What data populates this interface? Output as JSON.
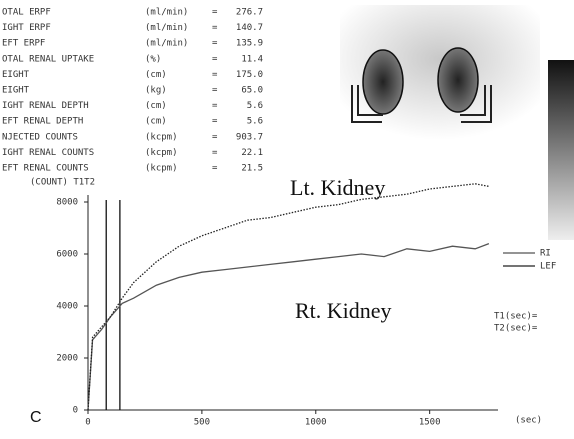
{
  "parameters": [
    {
      "label": "OTAL ERPF",
      "unit": "(ml/min)",
      "value": "276.7"
    },
    {
      "label": "IGHT ERPF",
      "unit": "(ml/min)",
      "value": "140.7"
    },
    {
      "label": "EFT ERPF",
      "unit": "(ml/min)",
      "value": "135.9"
    },
    {
      "label": "OTAL RENAL UPTAKE",
      "unit": "(%)",
      "value": "11.4"
    },
    {
      "label": "EIGHT",
      "unit": "(cm)",
      "value": "175.0"
    },
    {
      "label": "EIGHT",
      "unit": "(kg)",
      "value": "65.0"
    },
    {
      "label": "IGHT RENAL DEPTH",
      "unit": "(cm)",
      "value": "5.6"
    },
    {
      "label": "EFT RENAL DEPTH",
      "unit": "(cm)",
      "value": "5.6"
    },
    {
      "label": "NJECTED COUNTS",
      "unit": "(kcpm)",
      "value": "903.7"
    },
    {
      "label": "IGHT RENAL COUNTS",
      "unit": "(kcpm)",
      "value": "22.1"
    },
    {
      "label": "EFT RENAL COUNTS",
      "unit": "(kcpm)",
      "value": "21.5"
    }
  ],
  "equals": "=",
  "panel_label": "C",
  "side_labels": [
    "T1(sec)=",
    "T2(sec)="
  ],
  "chart_data": {
    "type": "line",
    "y_label": "(COUNT) T1T2",
    "x_label": "(sec)",
    "annotations": [
      "Lt. Kidney",
      "Rt. Kidney"
    ],
    "x": [
      0,
      20,
      60,
      100,
      150,
      200,
      300,
      400,
      500,
      600,
      700,
      800,
      900,
      1000,
      1100,
      1200,
      1300,
      1400,
      1500,
      1600,
      1700,
      1760
    ],
    "series": [
      {
        "name": "RI",
        "color": "#555555",
        "values": [
          0,
          2700,
          3100,
          3600,
          4100,
          4300,
          4800,
          5100,
          5300,
          5400,
          5500,
          5600,
          5700,
          5800,
          5900,
          6000,
          5900,
          6200,
          6100,
          6300,
          6200,
          6400
        ]
      },
      {
        "name": "LEF",
        "color": "#222222",
        "values": [
          0,
          2800,
          3200,
          3600,
          4300,
          4900,
          5700,
          6300,
          6700,
          7000,
          7300,
          7400,
          7600,
          7800,
          7900,
          8100,
          8200,
          8300,
          8500,
          8600,
          8700,
          8600
        ]
      }
    ],
    "markers": [
      80,
      140
    ],
    "xlim": [
      0,
      1800
    ],
    "ylim": [
      0,
      9000
    ],
    "xticks": [
      0,
      500,
      1000,
      1500
    ],
    "yticks": [
      0,
      2000,
      4000,
      6000,
      8000
    ]
  }
}
